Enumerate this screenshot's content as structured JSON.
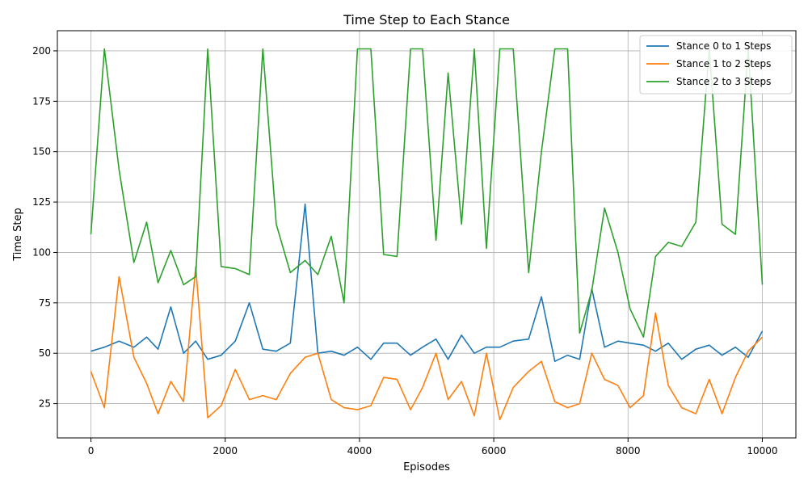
{
  "chart_data": {
    "type": "line",
    "title": "Time Step to Each Stance",
    "xlabel": "Episodes",
    "ylabel": "Time Step",
    "xlim": [
      -500,
      10500
    ],
    "ylim": [
      8,
      210
    ],
    "xticks": [
      0,
      2000,
      4000,
      6000,
      8000,
      10000
    ],
    "yticks": [
      25,
      50,
      75,
      100,
      125,
      150,
      175,
      200
    ],
    "grid": true,
    "legend_position": "upper right",
    "x": [
      0,
      200,
      420,
      640,
      830,
      1000,
      1190,
      1380,
      1560,
      1740,
      1940,
      2150,
      2360,
      2560,
      2760,
      2970,
      3190,
      3380,
      3580,
      3770,
      3970,
      4170,
      4360,
      4560,
      4760,
      4940,
      5140,
      5320,
      5520,
      5710,
      5890,
      6090,
      6290,
      6520,
      6710,
      6910,
      7100,
      7280,
      7460,
      7650,
      7850,
      8030,
      8230,
      8410,
      8600,
      8800,
      9010,
      9210,
      9400,
      9600,
      9790,
      10000
    ],
    "series": [
      {
        "name": "Stance 0 to 1 Steps",
        "color": "#1f77b4",
        "values": [
          51,
          53,
          56,
          53,
          58,
          52,
          73,
          50,
          56,
          47,
          49,
          56,
          75,
          52,
          51,
          55,
          124,
          50,
          51,
          49,
          53,
          47,
          55,
          55,
          49,
          53,
          57,
          47,
          59,
          50,
          53,
          53,
          56,
          57,
          78,
          46,
          49,
          47,
          82,
          53,
          56,
          55,
          54,
          51,
          55,
          47,
          52,
          54,
          49,
          53,
          48,
          61
        ]
      },
      {
        "name": "Stance 1 to 2 Steps",
        "color": "#ff7f0e",
        "values": [
          41,
          23,
          88,
          48,
          35,
          20,
          36,
          26,
          93,
          18,
          24,
          42,
          27,
          29,
          27,
          40,
          48,
          50,
          27,
          23,
          22,
          24,
          38,
          37,
          22,
          33,
          50,
          27,
          36,
          19,
          50,
          17,
          33,
          41,
          46,
          26,
          23,
          25,
          50,
          37,
          34,
          23,
          29,
          70,
          34,
          23,
          20,
          37,
          20,
          38,
          51,
          58
        ]
      },
      {
        "name": "Stance 2 to 3 Steps",
        "color": "#2ca02c",
        "values": [
          109,
          201,
          141,
          95,
          115,
          85,
          101,
          84,
          88,
          201,
          93,
          92,
          89,
          201,
          114,
          90,
          96,
          89,
          108,
          75,
          201,
          201,
          99,
          98,
          201,
          201,
          106,
          189,
          114,
          201,
          102,
          201,
          201,
          90,
          150,
          201,
          201,
          60,
          81,
          122,
          100,
          72,
          58,
          98,
          105,
          103,
          115,
          201,
          114,
          109,
          201,
          84
        ]
      }
    ]
  }
}
